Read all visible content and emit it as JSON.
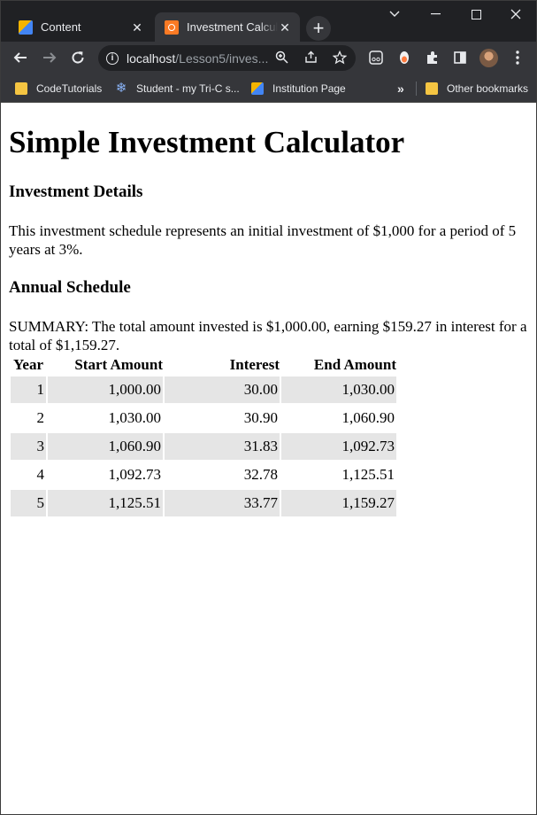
{
  "browser": {
    "tabs": [
      {
        "title": "Content",
        "favicon": "pencil-icon"
      },
      {
        "title": "Investment Calcula",
        "favicon": "xampp-icon",
        "active": true
      }
    ],
    "new_tab": "+",
    "url_host": "localhost",
    "url_path": "/Lesson5/inves...",
    "bookmarks": [
      {
        "label": "CodeTutorials",
        "icon": "folder-icon"
      },
      {
        "label": "Student - my Tri-C s...",
        "icon": "snowflake-icon"
      },
      {
        "label": "Institution Page",
        "icon": "pencil-icon"
      }
    ],
    "bookmarks_overflow": "»",
    "other_bookmarks": "Other bookmarks"
  },
  "page": {
    "title": "Simple Investment Calculator",
    "details_heading": "Investment Details",
    "details_text": "This investment schedule represents an initial investment of $1,000 for a period of 5 years at 3%.",
    "schedule_heading": "Annual Schedule",
    "summary": "SUMMARY: The total amount invested is $1,000.00, earning $159.27 in interest for a total of $1,159.27.",
    "table": {
      "headers": [
        "Year",
        "Start Amount",
        "Interest",
        "End Amount"
      ],
      "rows": [
        [
          "1",
          "1,000.00",
          "30.00",
          "1,030.00"
        ],
        [
          "2",
          "1,030.00",
          "30.90",
          "1,060.90"
        ],
        [
          "3",
          "1,060.90",
          "31.83",
          "1,092.73"
        ],
        [
          "4",
          "1,092.73",
          "32.78",
          "1,125.51"
        ],
        [
          "5",
          "1,125.51",
          "33.77",
          "1,159.27"
        ]
      ]
    }
  }
}
